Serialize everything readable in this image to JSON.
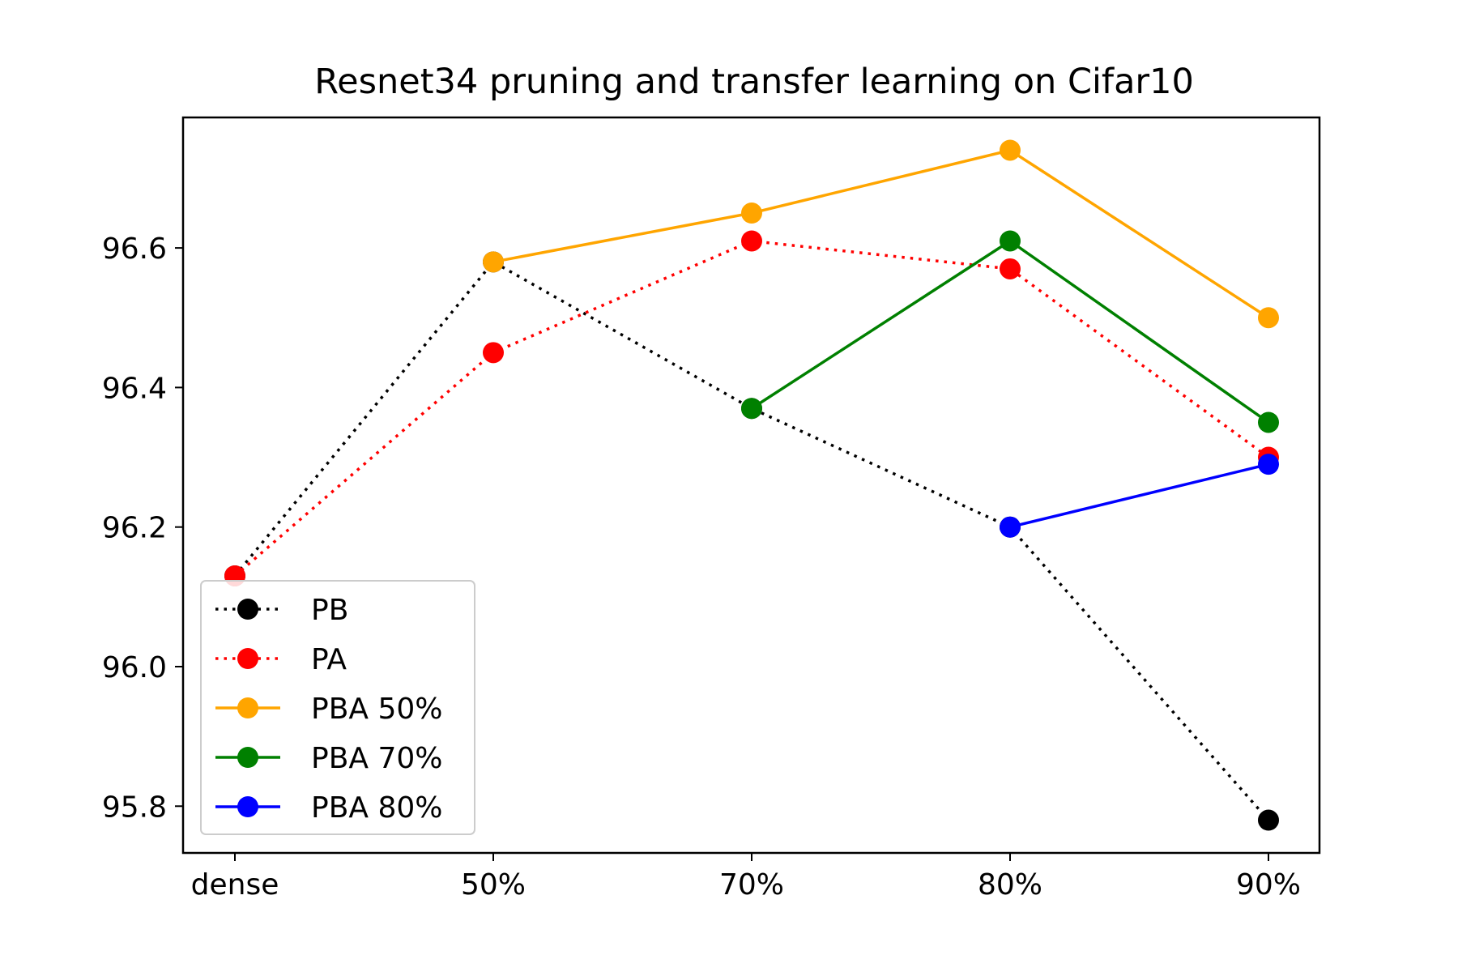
{
  "chart_data": {
    "type": "line",
    "title": "Resnet34 pruning and transfer learning on Cifar10",
    "xlabel": "",
    "ylabel": "",
    "categories": [
      "dense",
      "50%",
      "70%",
      "80%",
      "90%"
    ],
    "ylim": [
      95.733,
      96.787
    ],
    "yticks": [
      95.8,
      96.0,
      96.2,
      96.4,
      96.6
    ],
    "yticklabels": [
      "95.8",
      "96.0",
      "96.2",
      "96.4",
      "96.6"
    ],
    "grid": false,
    "legend_position": "lower-left",
    "series": [
      {
        "name": "PB",
        "color": "#000000",
        "style": "dotted",
        "x": [
          0,
          1,
          2,
          3,
          4
        ],
        "values": [
          96.13,
          96.58,
          96.37,
          96.2,
          95.78
        ]
      },
      {
        "name": "PA",
        "color": "#ff0000",
        "style": "dotted",
        "x": [
          0,
          1,
          2,
          3,
          4
        ],
        "values": [
          96.13,
          96.45,
          96.61,
          96.57,
          96.3
        ]
      },
      {
        "name": "PBA 50%",
        "color": "#ffa500",
        "style": "solid",
        "x": [
          1,
          2,
          3,
          4
        ],
        "values": [
          96.58,
          96.65,
          96.74,
          96.5
        ]
      },
      {
        "name": "PBA 70%",
        "color": "#008000",
        "style": "solid",
        "x": [
          2,
          3,
          4
        ],
        "values": [
          96.37,
          96.61,
          96.35
        ]
      },
      {
        "name": "PBA 80%",
        "color": "#0000ff",
        "style": "solid",
        "x": [
          3,
          4
        ],
        "values": [
          96.2,
          96.29
        ]
      }
    ]
  }
}
